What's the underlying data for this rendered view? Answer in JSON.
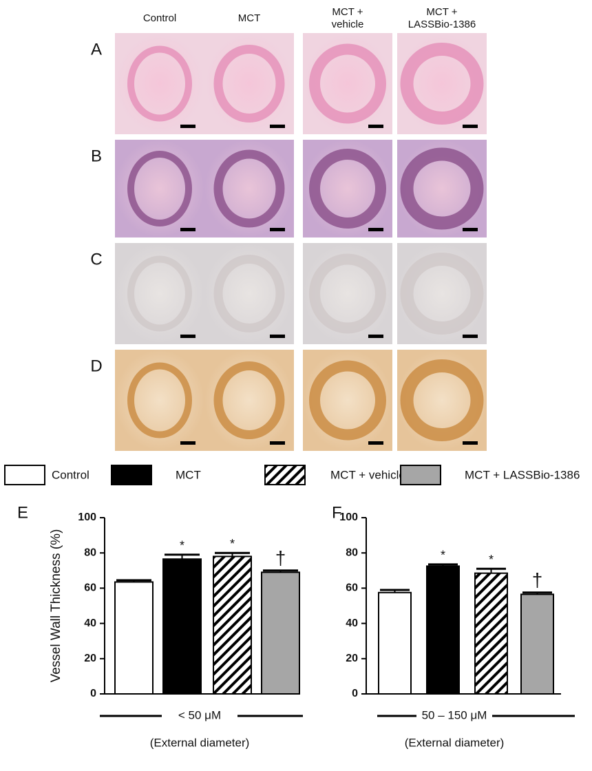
{
  "columns": [
    [
      "Control"
    ],
    [
      "MCT"
    ],
    [
      "MCT +",
      "vehicle"
    ],
    [
      "MCT +",
      "LASSBio-1386"
    ]
  ],
  "rows": [
    "A",
    "B",
    "C",
    "D"
  ],
  "legend": [
    {
      "name": "Control",
      "fill": "#ffffff"
    },
    {
      "name": "MCT",
      "fill": "#000000"
    },
    {
      "name": "MCT + vehicle",
      "fill": "hatch"
    },
    {
      "name": "MCT + LASSBio-1386",
      "fill": "#a6a6a6"
    }
  ],
  "chart_data": [
    {
      "type": "bar",
      "panel": "E",
      "ylabel": "Vessel Wall Thickness (%)",
      "xlabel": "< 50 μM",
      "note": "(External diameter)",
      "values": [
        63.5,
        76.5,
        78,
        69
      ],
      "errors": [
        1,
        2.5,
        2,
        1
      ],
      "annotations": [
        null,
        "*",
        "*",
        "†"
      ],
      "ylim": [
        0,
        100
      ],
      "yticks": [
        0,
        20,
        40,
        60,
        80,
        100
      ]
    },
    {
      "type": "bar",
      "panel": "F",
      "xlabel": "50 – 150 μM",
      "note": "(External diameter)",
      "values": [
        57.5,
        72.5,
        68.5,
        56.5
      ],
      "errors": [
        1.5,
        1,
        2.5,
        1
      ],
      "annotations": [
        null,
        "*",
        "*",
        "†"
      ],
      "ylim": [
        0,
        100
      ],
      "yticks": [
        0,
        20,
        40,
        60,
        80,
        100
      ]
    }
  ]
}
